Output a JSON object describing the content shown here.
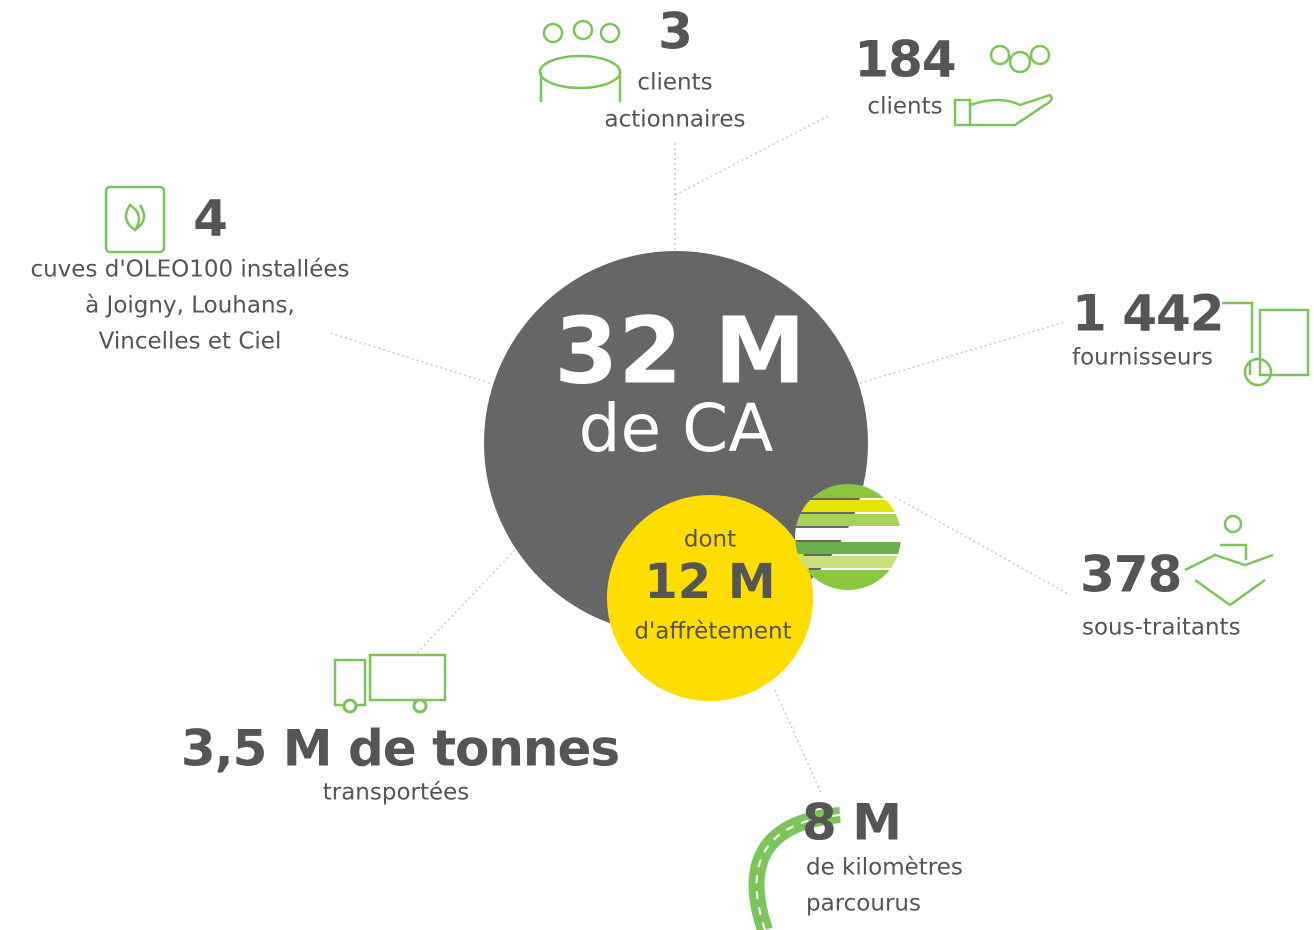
{
  "center": {
    "value": "32 M",
    "label": "de CA"
  },
  "sub": {
    "prefix": "dont",
    "value": "12 M",
    "label": "d'affrètement"
  },
  "items": [
    {
      "value": "3",
      "lines": [
        "clients",
        "actionnaires"
      ]
    },
    {
      "value": "184",
      "lines": [
        "clients"
      ]
    },
    {
      "value": "4",
      "lines": [
        "cuves d'OLEO100 installées",
        "à Joigny, Louhans,",
        "Vincelles et Ciel"
      ]
    },
    {
      "value": "1 442",
      "lines": [
        "fournisseurs"
      ]
    },
    {
      "value": "378",
      "lines": [
        "sous-traitants"
      ]
    },
    {
      "value": "3,5 M de tonnes",
      "lines": [
        "transportées"
      ]
    },
    {
      "value": "8 M",
      "lines": [
        "de kilomètres",
        "parcourus"
      ]
    }
  ]
}
